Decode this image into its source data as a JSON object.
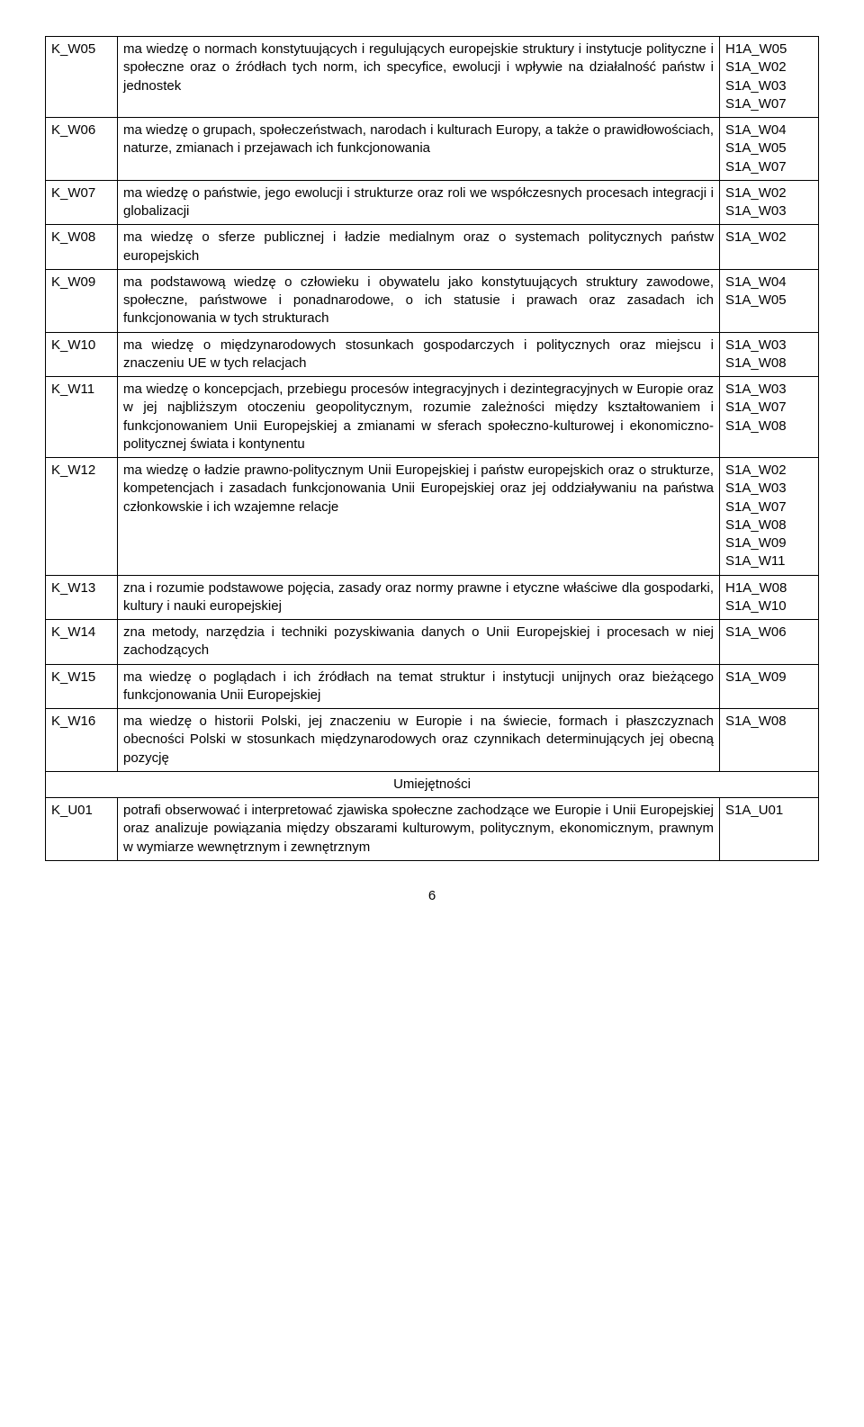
{
  "rows": [
    {
      "code": "K_W05",
      "desc": "ma wiedzę o normach konstytuujących i regulujących europejskie struktury i instytucje polityczne i społeczne oraz o źródłach tych norm, ich specyfice, ewolucji i wpływie na działalność państw i jednostek",
      "refs": "H1A_W05\nS1A_W02\nS1A_W03\nS1A_W07"
    },
    {
      "code": "K_W06",
      "desc": "ma wiedzę o grupach, społeczeństwach, narodach i kulturach Europy, a także o prawidłowościach, naturze, zmianach i przejawach ich funkcjonowania",
      "refs": "S1A_W04\nS1A_W05\nS1A_W07"
    },
    {
      "code": "K_W07",
      "desc": "ma wiedzę o państwie, jego ewolucji i strukturze oraz roli we współczesnych procesach integracji i globalizacji",
      "refs": "S1A_W02\nS1A_W03"
    },
    {
      "code": "K_W08",
      "desc": "ma wiedzę o sferze publicznej i ładzie medialnym oraz o systemach politycznych państw europejskich",
      "refs": "S1A_W02"
    },
    {
      "code": "K_W09",
      "desc": "ma podstawową wiedzę o człowieku i obywatelu jako konstytuujących struktury zawodowe, społeczne, państwowe i ponadnarodowe, o ich statusie i prawach oraz zasadach ich funkcjonowania w tych strukturach",
      "refs": "S1A_W04\nS1A_W05"
    },
    {
      "code": "K_W10",
      "desc": "ma wiedzę o międzynarodowych stosunkach gospodarczych i politycznych oraz miejscu i znaczeniu UE w tych relacjach",
      "refs": "S1A_W03\nS1A_W08"
    },
    {
      "code": "K_W11",
      "desc": "ma wiedzę o koncepcjach, przebiegu procesów integracyjnych i dezintegracyjnych w Europie oraz w jej najbliższym otoczeniu geopolitycznym, rozumie zależności między kształtowaniem i funkcjonowaniem Unii Europejskiej a zmianami w sferach społeczno-kulturowej i ekonomiczno-politycznej świata i kontynentu",
      "refs": "S1A_W03\nS1A_W07\nS1A_W08"
    },
    {
      "code": "K_W12",
      "desc": "ma wiedzę o ładzie prawno-politycznym Unii Europejskiej i państw europejskich oraz o strukturze, kompetencjach i zasadach funkcjonowania Unii Europejskiej oraz jej oddziaływaniu na państwa członkowskie i ich wzajemne relacje",
      "refs": "S1A_W02\nS1A_W03\nS1A_W07\nS1A_W08\nS1A_W09\nS1A_W11"
    },
    {
      "code": "K_W13",
      "desc": "zna i rozumie podstawowe pojęcia, zasady oraz normy prawne i etyczne właściwe dla gospodarki, kultury i nauki europejskiej",
      "refs": "H1A_W08\nS1A_W10"
    },
    {
      "code": "K_W14",
      "desc": "zna metody, narzędzia i techniki pozyskiwania danych o Unii Europejskiej i procesach w niej zachodzących",
      "refs": "S1A_W06"
    },
    {
      "code": "K_W15",
      "desc": "ma wiedzę o poglądach i ich źródłach na temat struktur i instytucji unijnych oraz bieżącego funkcjonowania Unii Europejskiej",
      "refs": "S1A_W09"
    },
    {
      "code": "K_W16",
      "desc": "ma wiedzę o historii Polski, jej znaczeniu w Europie i na świecie, formach i płaszczyznach obecności Polski w stosunkach międzynarodowych oraz czynnikach determinujących jej obecną pozycję",
      "refs": "S1A_W08"
    }
  ],
  "section_header": "Umiejętności",
  "rows2": [
    {
      "code": "K_U01",
      "desc": "potrafi obserwować i interpretować zjawiska społeczne zachodzące we Europie i Unii Europejskiej oraz analizuje powiązania między obszarami kulturowym, politycznym, ekonomicznym, prawnym w wymiarze wewnętrznym i zewnętrznym",
      "refs": "S1A_U01"
    }
  ],
  "page_number": "6"
}
